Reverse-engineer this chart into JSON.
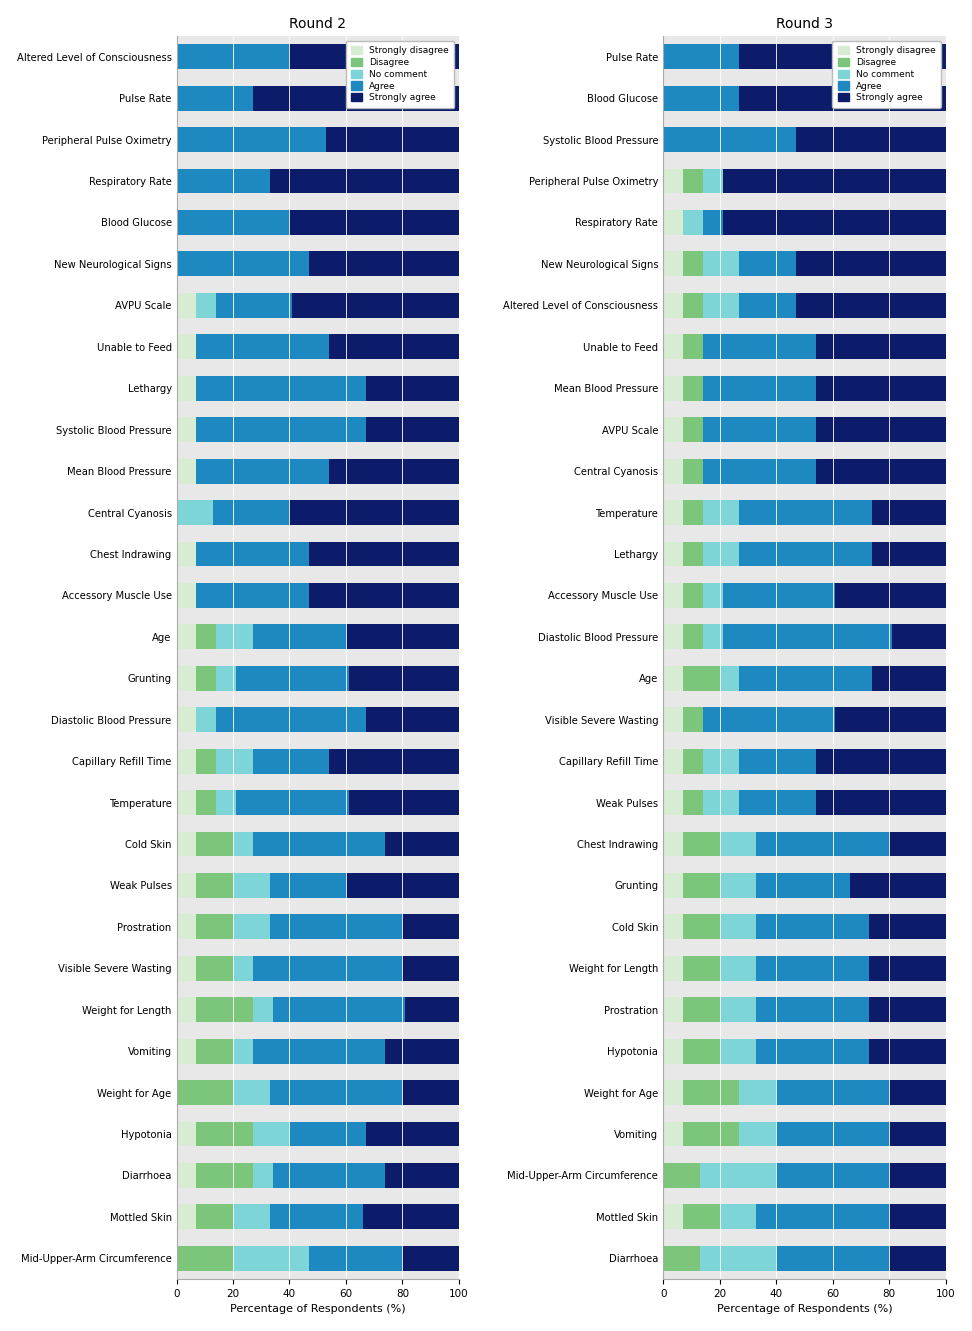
{
  "round2_categories": [
    "Altered Level of Consciousness",
    "Pulse Rate",
    "Peripheral Pulse Oximetry",
    "Respiratory Rate",
    "Blood Glucose",
    "New Neurological Signs",
    "AVPU Scale",
    "Unable to Feed",
    "Lethargy",
    "Systolic Blood Pressure",
    "Mean Blood Pressure",
    "Central Cyanosis",
    "Chest Indrawing",
    "Accessory Muscle Use",
    "Age",
    "Grunting",
    "Diastolic Blood Pressure",
    "Capillary Refill Time",
    "Temperature",
    "Cold Skin",
    "Weak Pulses",
    "Prostration",
    "Visible Severe Wasting",
    "Weight for Length",
    "Vomiting",
    "Weight for Age",
    "Hypotonia",
    "Diarrhoea",
    "Mottled Skin",
    "Mid-Upper-Arm Circumference"
  ],
  "round2_data": [
    [
      0,
      0,
      0,
      40,
      60
    ],
    [
      0,
      0,
      0,
      27,
      73
    ],
    [
      0,
      0,
      0,
      53,
      47
    ],
    [
      0,
      0,
      0,
      33,
      67
    ],
    [
      0,
      0,
      0,
      40,
      60
    ],
    [
      0,
      0,
      0,
      47,
      53
    ],
    [
      7,
      0,
      7,
      27,
      59
    ],
    [
      7,
      0,
      0,
      47,
      46
    ],
    [
      7,
      0,
      0,
      60,
      33
    ],
    [
      7,
      0,
      0,
      60,
      33
    ],
    [
      7,
      0,
      0,
      47,
      46
    ],
    [
      0,
      0,
      13,
      27,
      60
    ],
    [
      7,
      0,
      0,
      40,
      53
    ],
    [
      7,
      0,
      0,
      40,
      53
    ],
    [
      7,
      7,
      13,
      33,
      40
    ],
    [
      7,
      7,
      7,
      40,
      39
    ],
    [
      7,
      0,
      7,
      53,
      33
    ],
    [
      7,
      7,
      13,
      27,
      46
    ],
    [
      7,
      7,
      7,
      40,
      39
    ],
    [
      7,
      13,
      7,
      47,
      26
    ],
    [
      7,
      13,
      13,
      27,
      40
    ],
    [
      7,
      13,
      13,
      47,
      20
    ],
    [
      7,
      13,
      7,
      53,
      20
    ],
    [
      7,
      20,
      7,
      47,
      19
    ],
    [
      7,
      13,
      7,
      47,
      26
    ],
    [
      0,
      20,
      13,
      47,
      20
    ],
    [
      7,
      20,
      13,
      27,
      33
    ],
    [
      7,
      20,
      7,
      40,
      26
    ],
    [
      7,
      13,
      13,
      33,
      34
    ],
    [
      0,
      20,
      27,
      33,
      20
    ]
  ],
  "round3_categories": [
    "Pulse Rate",
    "Blood Glucose",
    "Systolic Blood Pressure",
    "Peripheral Pulse Oximetry",
    "Respiratory Rate",
    "New Neurological Signs",
    "Altered Level of Consciousness",
    "Unable to Feed",
    "Mean Blood Pressure",
    "AVPU Scale",
    "Central Cyanosis",
    "Temperature",
    "Lethargy",
    "Accessory Muscle Use",
    "Diastolic Blood Pressure",
    "Age",
    "Visible Severe Wasting",
    "Capillary Refill Time",
    "Weak Pulses",
    "Chest Indrawing",
    "Grunting",
    "Cold Skin",
    "Weight for Length",
    "Prostration",
    "Hypotonia",
    "Weight for Age",
    "Vomiting",
    "Mid-Upper-Arm Circumference",
    "Mottled Skin",
    "Diarrhoea"
  ],
  "round3_data": [
    [
      0,
      0,
      0,
      27,
      73
    ],
    [
      0,
      0,
      0,
      27,
      73
    ],
    [
      0,
      0,
      0,
      47,
      53
    ],
    [
      7,
      7,
      7,
      0,
      79
    ],
    [
      7,
      0,
      7,
      7,
      79
    ],
    [
      7,
      7,
      13,
      20,
      53
    ],
    [
      7,
      7,
      13,
      20,
      53
    ],
    [
      7,
      7,
      0,
      40,
      46
    ],
    [
      7,
      7,
      0,
      40,
      46
    ],
    [
      7,
      7,
      0,
      40,
      46
    ],
    [
      7,
      7,
      0,
      40,
      46
    ],
    [
      7,
      7,
      13,
      47,
      26
    ],
    [
      7,
      7,
      13,
      47,
      26
    ],
    [
      7,
      7,
      7,
      40,
      39
    ],
    [
      7,
      7,
      7,
      60,
      19
    ],
    [
      7,
      13,
      7,
      47,
      26
    ],
    [
      7,
      7,
      0,
      47,
      39
    ],
    [
      7,
      7,
      13,
      27,
      46
    ],
    [
      7,
      7,
      13,
      27,
      46
    ],
    [
      7,
      13,
      13,
      47,
      20
    ],
    [
      7,
      13,
      13,
      33,
      34
    ],
    [
      7,
      13,
      13,
      40,
      27
    ],
    [
      7,
      13,
      13,
      40,
      27
    ],
    [
      7,
      13,
      13,
      40,
      27
    ],
    [
      7,
      13,
      13,
      40,
      27
    ],
    [
      7,
      20,
      13,
      40,
      20
    ],
    [
      7,
      20,
      13,
      40,
      20
    ],
    [
      0,
      13,
      27,
      40,
      20
    ],
    [
      7,
      13,
      13,
      47,
      20
    ],
    [
      0,
      13,
      27,
      40,
      20
    ]
  ],
  "colors": [
    "#d8ecd4",
    "#7bc67a",
    "#7dd5d8",
    "#1e88c0",
    "#0c1c6b"
  ],
  "legend_labels": [
    "Strongly disagree",
    "Disagree",
    "No comment",
    "Agree",
    "Strongly agree"
  ],
  "xlabel": "Percentage of Respondents (%)",
  "title_r2": "Round 2",
  "title_r3": "Round 3",
  "bar_height": 0.6,
  "background_color": "#e8e8e8"
}
